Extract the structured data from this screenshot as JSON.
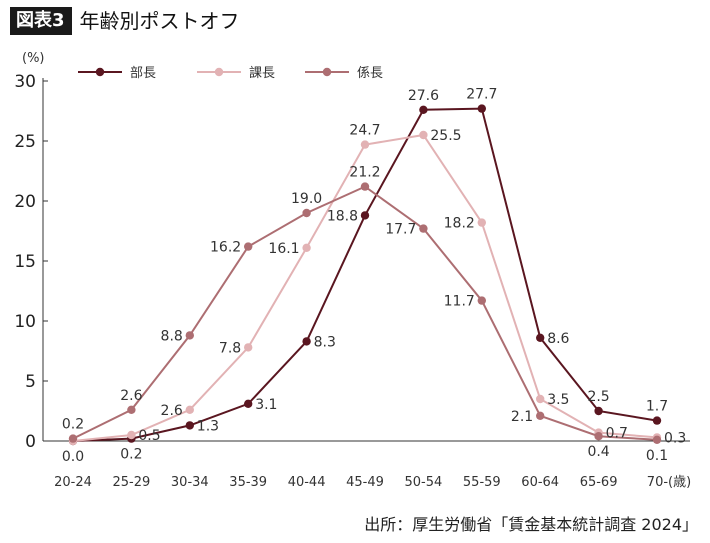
{
  "header": {
    "figure_label": "図表3",
    "title": "年齢別ポストオフ"
  },
  "source": "出所：厚生労働省「賃金基本統計調査 2024」",
  "chart_data": {
    "type": "line",
    "ylabel": "(%)",
    "x_unit": "(歳)",
    "ylim": [
      0,
      30
    ],
    "yticks": [
      0,
      5,
      10,
      15,
      20,
      25,
      30
    ],
    "grid": false,
    "legend": "top-left",
    "categories": [
      "20-24",
      "25-29",
      "30-34",
      "35-39",
      "40-44",
      "45-49",
      "50-54",
      "55-59",
      "60-64",
      "65-69",
      "70-"
    ],
    "series": [
      {
        "name": "部長",
        "color": "#5a1620",
        "values": [
          0.0,
          0.2,
          1.3,
          3.1,
          8.3,
          18.8,
          27.6,
          27.7,
          8.6,
          2.5,
          1.7
        ]
      },
      {
        "name": "課長",
        "color": "#e2b2b4",
        "values": [
          0.0,
          0.5,
          2.6,
          7.8,
          16.1,
          24.7,
          25.5,
          18.2,
          3.5,
          0.7,
          0.3
        ]
      },
      {
        "name": "係長",
        "color": "#ad6e72",
        "values": [
          0.2,
          2.6,
          8.8,
          16.2,
          19.0,
          21.2,
          17.7,
          11.7,
          2.1,
          0.4,
          0.1
        ]
      }
    ],
    "data_labels": [
      {
        "text": "0.2",
        "series": 2,
        "index": 0,
        "pos": "above"
      },
      {
        "text": "0.0",
        "series": 0,
        "index": 0,
        "pos": "below"
      },
      {
        "text": "2.6",
        "series": 2,
        "index": 1,
        "pos": "above"
      },
      {
        "text": "0.5",
        "series": 1,
        "index": 1,
        "pos": "right"
      },
      {
        "text": "0.2",
        "series": 0,
        "index": 1,
        "pos": "below"
      },
      {
        "text": "8.8",
        "series": 2,
        "index": 2,
        "pos": "left"
      },
      {
        "text": "2.6",
        "series": 1,
        "index": 2,
        "pos": "left"
      },
      {
        "text": "1.3",
        "series": 0,
        "index": 2,
        "pos": "right"
      },
      {
        "text": "16.2",
        "series": 2,
        "index": 3,
        "pos": "left"
      },
      {
        "text": "7.8",
        "series": 1,
        "index": 3,
        "pos": "left"
      },
      {
        "text": "3.1",
        "series": 0,
        "index": 3,
        "pos": "right"
      },
      {
        "text": "19.0",
        "series": 2,
        "index": 4,
        "pos": "above"
      },
      {
        "text": "16.1",
        "series": 1,
        "index": 4,
        "pos": "left"
      },
      {
        "text": "8.3",
        "series": 0,
        "index": 4,
        "pos": "right"
      },
      {
        "text": "21.2",
        "series": 2,
        "index": 5,
        "pos": "above"
      },
      {
        "text": "24.7",
        "series": 1,
        "index": 5,
        "pos": "above"
      },
      {
        "text": "18.8",
        "series": 0,
        "index": 5,
        "pos": "left"
      },
      {
        "text": "17.7",
        "series": 2,
        "index": 6,
        "pos": "left"
      },
      {
        "text": "27.6",
        "series": 0,
        "index": 6,
        "pos": "above"
      },
      {
        "text": "25.5",
        "series": 1,
        "index": 6,
        "pos": "right"
      },
      {
        "text": "11.7",
        "series": 2,
        "index": 7,
        "pos": "left"
      },
      {
        "text": "18.2",
        "series": 1,
        "index": 7,
        "pos": "left"
      },
      {
        "text": "27.7",
        "series": 0,
        "index": 7,
        "pos": "above"
      },
      {
        "text": "8.6",
        "series": 0,
        "index": 8,
        "pos": "right"
      },
      {
        "text": "3.5",
        "series": 1,
        "index": 8,
        "pos": "right"
      },
      {
        "text": "2.1",
        "series": 2,
        "index": 8,
        "pos": "left"
      },
      {
        "text": "2.5",
        "series": 0,
        "index": 9,
        "pos": "above"
      },
      {
        "text": "0.7",
        "series": 1,
        "index": 9,
        "pos": "right"
      },
      {
        "text": "0.4",
        "series": 2,
        "index": 9,
        "pos": "below"
      },
      {
        "text": "1.7",
        "series": 0,
        "index": 10,
        "pos": "above"
      },
      {
        "text": "0.3",
        "series": 1,
        "index": 10,
        "pos": "right"
      },
      {
        "text": "0.1",
        "series": 2,
        "index": 10,
        "pos": "below"
      }
    ]
  }
}
